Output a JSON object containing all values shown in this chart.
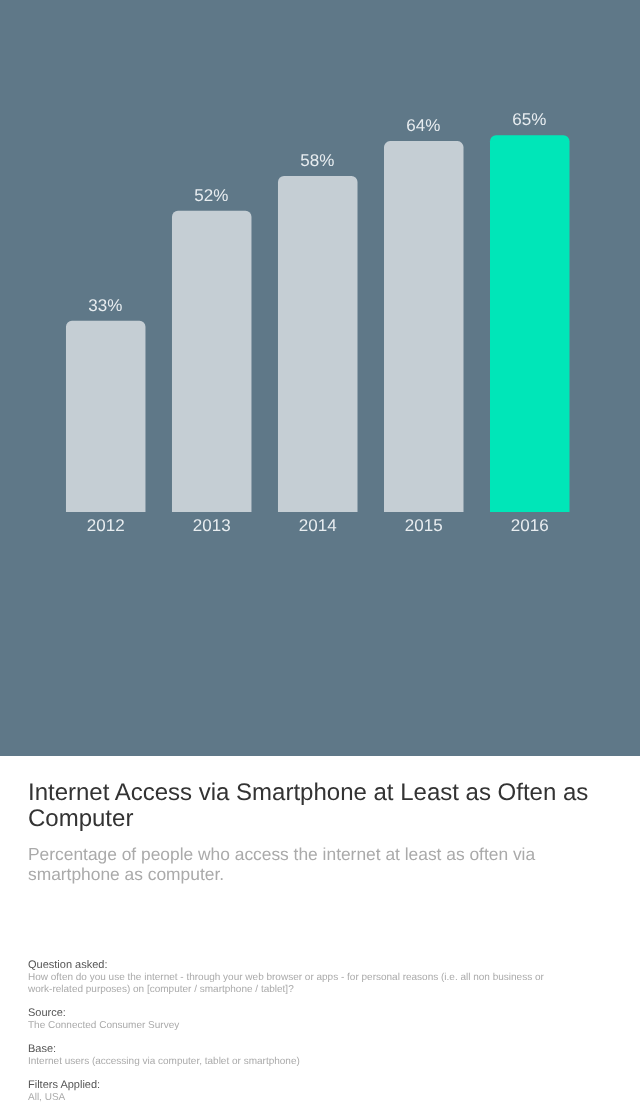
{
  "chart_data": {
    "type": "bar",
    "title": "Internet Access via Smartphone at Least as Often as Computer",
    "subtitle": "Percentage of people who access the internet at least as often via smartphone as computer.",
    "categories": [
      "2012",
      "2013",
      "2014",
      "2015",
      "2016"
    ],
    "values": [
      33,
      52,
      58,
      64,
      65
    ],
    "colors": [
      "#c5ced4",
      "#c5ced4",
      "#c5ced4",
      "#c5ced4",
      "#00e6b8"
    ],
    "value_labels": [
      "33%",
      "52%",
      "58%",
      "64%",
      "65%"
    ],
    "annotations": [
      "Question asked:",
      "How often do you use the internet - through your web browser or apps - for personal reasons (i.e. all non business or work-related purposes) on [computer / smartphone / tablet]?",
      "Source:",
      "The Connected Consumer Survey",
      "Base:",
      "Internet users (accessing via computer, tablet or smartphone)",
      "Filters Applied:",
      "All, USA"
    ]
  }
}
